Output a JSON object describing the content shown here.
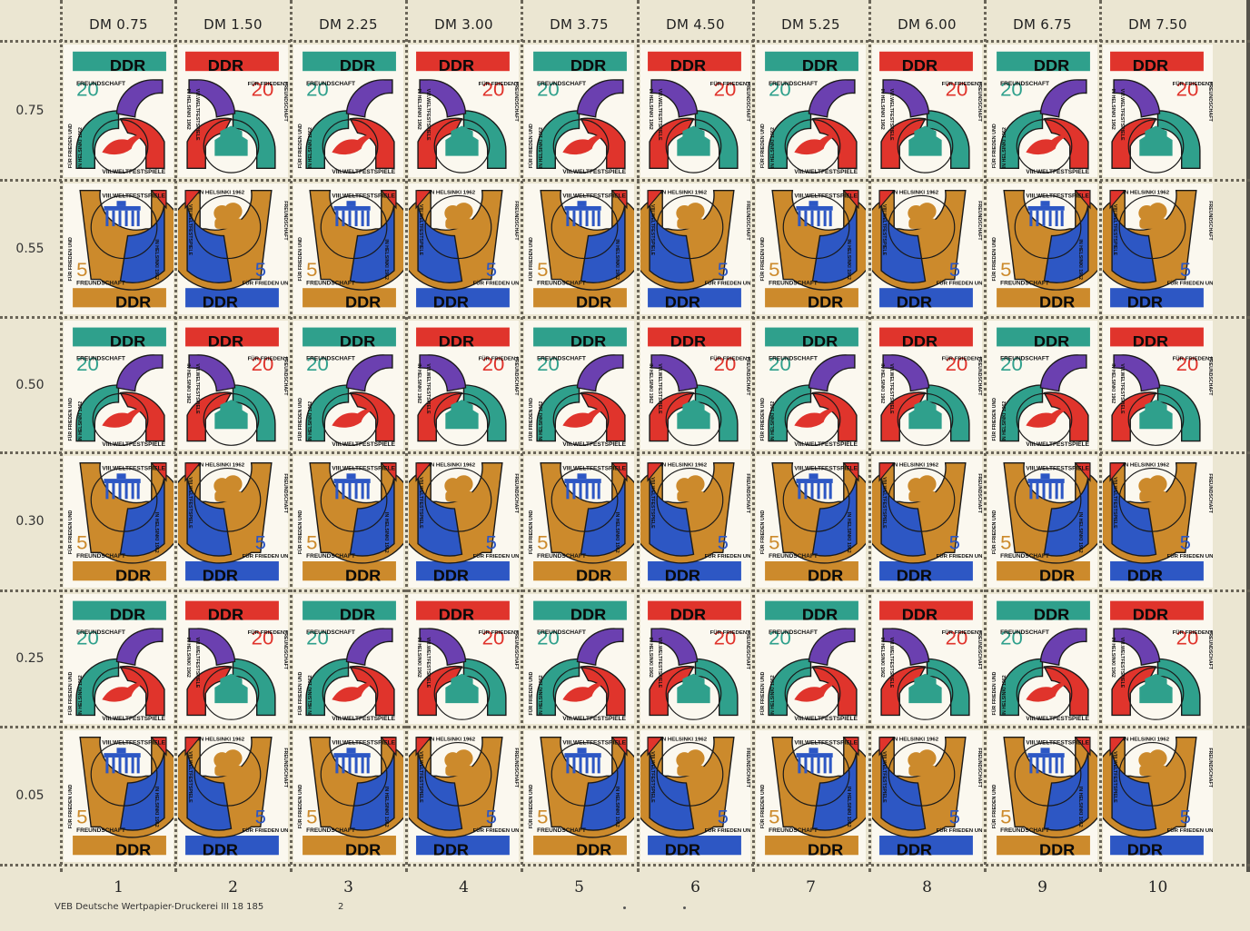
{
  "sheet": {
    "prices": [
      "DM 0.75",
      "DM 1.50",
      "DM 2.25",
      "DM 3.00",
      "DM 3.75",
      "DM 4.50",
      "DM 5.25",
      "DM 6.00",
      "DM 6.75",
      "DM 7.50"
    ],
    "row_labels": [
      "0.75",
      "0.55",
      "0.50",
      "0.30",
      "0.25",
      "0.05"
    ],
    "column_numbers": [
      "1",
      "2",
      "3",
      "4",
      "5",
      "6",
      "7",
      "8",
      "9",
      "10"
    ],
    "imprint": "VEB Deutsche Wertpapier-Druckerei III 18 185",
    "plate_number": "2"
  },
  "stamps": {
    "country": "DDR",
    "motto_a": "FÜR FRIEDEN UND",
    "motto_b": "FREUNDSCHAFT",
    "festival": "VIII.WELTFESTSPIELE",
    "city": "IN HELSINKI 1962",
    "value_20": "20",
    "value_5": "5"
  },
  "colors": {
    "paper": "#ebe6d2",
    "stamp_bg": "#fbf8ef",
    "teal": "#2fa08c",
    "red": "#e0342c",
    "purple": "#6b40b0",
    "orange": "#cc8a2c",
    "blue": "#2d57c4",
    "ink": "#1a1a1a"
  }
}
